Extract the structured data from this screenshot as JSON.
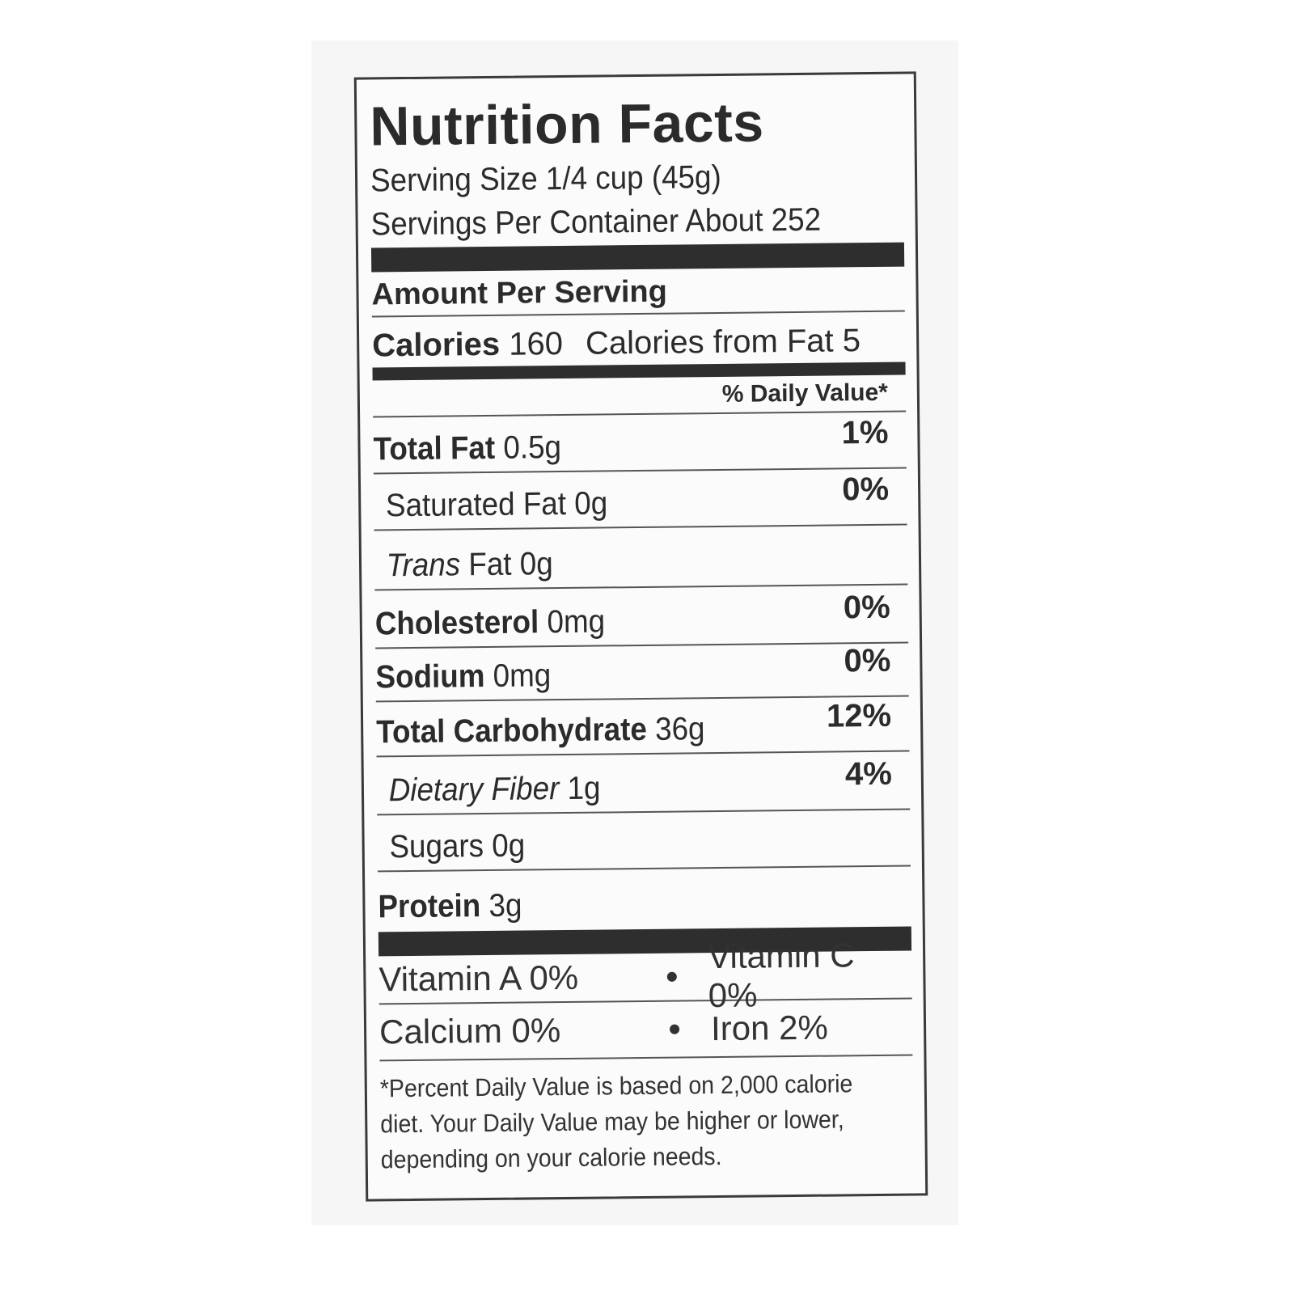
{
  "title": "Nutrition Facts",
  "serving_size": "Serving Size 1/4 cup (45g)",
  "servings_per_container": "Servings Per Container About 252",
  "amount_per_serving": "Amount Per Serving",
  "calories": {
    "label": "Calories",
    "value": "160",
    "from_fat": "Calories from Fat 5"
  },
  "daily_value_header": "% Daily Value*",
  "nutrients": [
    {
      "label": "Total Fat",
      "amount": "0.5g",
      "dv": "1%"
    },
    {
      "label": "Saturated Fat",
      "amount": "0g",
      "dv": "0%"
    },
    {
      "label": "Trans",
      "label_rest": "Fat",
      "amount": "0g",
      "dv": ""
    },
    {
      "label": "Cholesterol",
      "amount": "0mg",
      "dv": "0%"
    },
    {
      "label": "Sodium",
      "amount": "0mg",
      "dv": "0%"
    },
    {
      "label": "Total Carbohydrate",
      "amount": "36g",
      "dv": "12%"
    },
    {
      "label": "Dietary Fiber",
      "amount": "1g",
      "dv": "4%"
    },
    {
      "label": "Sugars",
      "amount": "0g",
      "dv": ""
    },
    {
      "label": "Protein",
      "amount": "3g",
      "dv": ""
    }
  ],
  "vitamins": [
    {
      "left": "Vitamin A 0%",
      "sep": "•",
      "right": "Vitamin C 0%"
    },
    {
      "left": "Calcium 0%",
      "sep": "•",
      "right": "Iron 2%"
    }
  ],
  "footnote": [
    "*Percent Daily Value is based on 2,000 calorie",
    "diet. Your Daily Value may be higher or lower,",
    "depending on your calorie needs."
  ]
}
